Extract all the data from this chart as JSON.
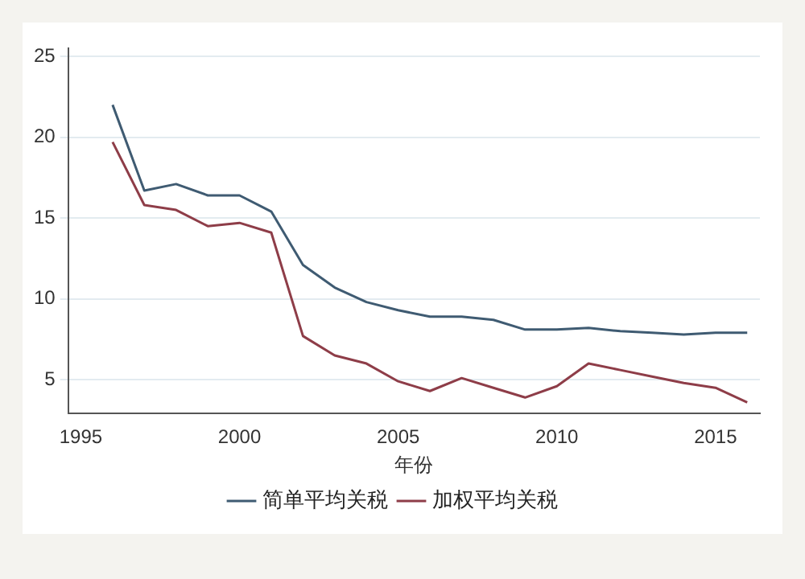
{
  "chart_data": {
    "type": "line",
    "xlabel": "年份",
    "x": [
      1996,
      1997,
      1998,
      1999,
      2000,
      2001,
      2002,
      2003,
      2004,
      2005,
      2006,
      2007,
      2008,
      2009,
      2010,
      2011,
      2012,
      2013,
      2014,
      2015,
      2016
    ],
    "series": [
      {
        "name": "简单平均关税",
        "color": "#3f5b72",
        "values": [
          22.0,
          16.7,
          17.1,
          16.4,
          16.4,
          15.4,
          12.1,
          10.7,
          9.8,
          9.3,
          8.9,
          8.9,
          8.7,
          8.1,
          8.1,
          8.2,
          8.0,
          7.9,
          7.8,
          7.9,
          7.9
        ]
      },
      {
        "name": "加权平均关税",
        "color": "#8e3d48",
        "values": [
          19.7,
          15.8,
          15.5,
          14.5,
          14.7,
          14.1,
          7.7,
          6.5,
          6.0,
          4.9,
          4.3,
          5.1,
          4.5,
          3.9,
          4.6,
          6.0,
          5.6,
          5.2,
          4.8,
          4.5,
          3.6
        ]
      }
    ],
    "xlim": [
      1994.6,
      2016.4
    ],
    "ylim": [
      2.9,
      25.5
    ],
    "xticks": [
      1995,
      2000,
      2005,
      2010,
      2015
    ],
    "yticks": [
      5,
      10,
      15,
      20,
      25
    ],
    "grid": "y",
    "legend": "bottom",
    "marker": "none",
    "line_style": "solid"
  }
}
